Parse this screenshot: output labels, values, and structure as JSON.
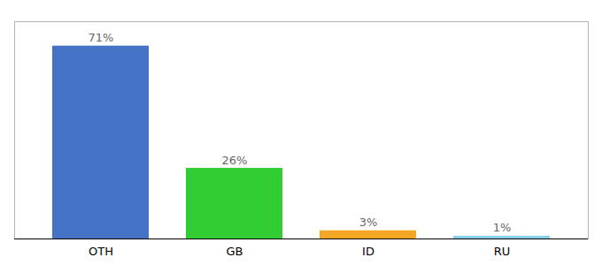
{
  "chart_data": {
    "type": "bar",
    "categories": [
      "OTH",
      "GB",
      "ID",
      "RU"
    ],
    "values": [
      71,
      26,
      3,
      1
    ],
    "value_labels": [
      "71%",
      "26%",
      "3%",
      "1%"
    ],
    "colors": [
      "#4472c4",
      "#33cc33",
      "#f5a623",
      "#87ceeb"
    ],
    "ylim": [
      0,
      80
    ],
    "data_labels": true,
    "tick_labels": "x",
    "grid": false
  }
}
